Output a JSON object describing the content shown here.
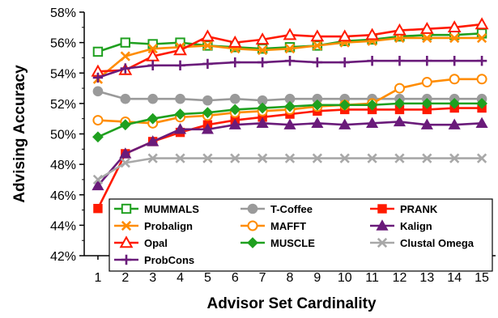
{
  "chart_data": {
    "type": "line",
    "xlabel": "Advisor Set Cardinality",
    "ylabel": "Advising Accuracy",
    "x": [
      1,
      2,
      3,
      4,
      5,
      6,
      7,
      8,
      9,
      10,
      11,
      12,
      13,
      14,
      15
    ],
    "xlim": [
      0.5,
      15.5
    ],
    "ylim": [
      42,
      58
    ],
    "yticks": [
      42,
      44,
      46,
      48,
      50,
      52,
      54,
      56,
      58
    ],
    "ytick_format": "percent",
    "grid": false,
    "legend": "bottom-right inside plot, three columns",
    "series": [
      {
        "name": "MUMMALS",
        "color": "#1fa01f",
        "marker": "square-open",
        "values": [
          55.4,
          56.0,
          55.9,
          56.0,
          55.8,
          55.7,
          55.6,
          55.7,
          55.8,
          56.1,
          56.2,
          56.4,
          56.5,
          56.5,
          56.6
        ]
      },
      {
        "name": "T-Coffee",
        "color": "#9a9a9a",
        "marker": "circle-filled",
        "values": [
          52.8,
          52.3,
          52.3,
          52.3,
          52.2,
          52.3,
          52.2,
          52.3,
          52.3,
          52.3,
          52.3,
          52.3,
          52.3,
          52.3,
          52.3
        ]
      },
      {
        "name": "PRANK",
        "color": "#ff1a00",
        "marker": "square-filled",
        "values": [
          45.1,
          48.7,
          49.5,
          50.1,
          50.6,
          50.9,
          51.1,
          51.3,
          51.5,
          51.6,
          51.6,
          51.6,
          51.6,
          51.7,
          51.7
        ]
      },
      {
        "name": "Probalign",
        "color": "#ff8c00",
        "marker": "x",
        "values": [
          53.6,
          55.1,
          55.6,
          55.7,
          55.8,
          55.6,
          55.5,
          55.6,
          55.8,
          56.0,
          56.1,
          56.3,
          56.3,
          56.3,
          56.3
        ]
      },
      {
        "name": "MAFFT",
        "color": "#ff8c00",
        "marker": "circle-open",
        "values": [
          50.9,
          50.8,
          50.7,
          51.1,
          51.2,
          51.4,
          51.5,
          51.6,
          51.8,
          51.9,
          52.0,
          53.0,
          53.4,
          53.6,
          53.6
        ]
      },
      {
        "name": "Kalign",
        "color": "#6a1b7a",
        "marker": "triangle-filled",
        "values": [
          46.6,
          48.7,
          49.5,
          50.3,
          50.3,
          50.6,
          50.7,
          50.6,
          50.7,
          50.6,
          50.7,
          50.8,
          50.6,
          50.6,
          50.7
        ]
      },
      {
        "name": "Opal",
        "color": "#ff1a00",
        "marker": "triangle-open",
        "values": [
          54.1,
          54.2,
          55.1,
          55.5,
          56.4,
          56.0,
          56.2,
          56.5,
          56.4,
          56.4,
          56.5,
          56.8,
          56.9,
          57.0,
          57.2
        ]
      },
      {
        "name": "MUSCLE",
        "color": "#1fa01f",
        "marker": "diamond-filled",
        "values": [
          49.8,
          50.6,
          51.0,
          51.3,
          51.4,
          51.6,
          51.7,
          51.8,
          51.9,
          51.9,
          51.9,
          52.0,
          52.0,
          52.0,
          52.0
        ]
      },
      {
        "name": "Clustal Omega",
        "color": "#a8a8a8",
        "marker": "x",
        "values": [
          47.0,
          48.1,
          48.4,
          48.4,
          48.4,
          48.4,
          48.4,
          48.4,
          48.4,
          48.4,
          48.4,
          48.4,
          48.4,
          48.4,
          48.4
        ]
      },
      {
        "name": "ProbCons",
        "color": "#6a1b7a",
        "marker": "plus",
        "values": [
          53.7,
          54.3,
          54.5,
          54.5,
          54.6,
          54.7,
          54.7,
          54.8,
          54.7,
          54.7,
          54.8,
          54.8,
          54.8,
          54.8,
          54.8
        ]
      }
    ]
  }
}
